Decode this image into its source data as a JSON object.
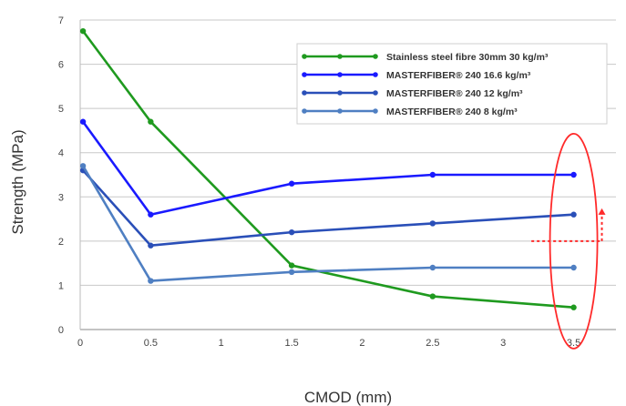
{
  "chart_data": {
    "type": "line",
    "xlabel": "CMOD (mm)",
    "ylabel": "Strength (MPa)",
    "xlim": [
      0,
      3.8
    ],
    "ylim": [
      0,
      7
    ],
    "xticks": [
      "0",
      "0.5",
      "1",
      "1.5",
      "2",
      "2.5",
      "3",
      "3.5"
    ],
    "yticks": [
      "0",
      "1",
      "2",
      "3",
      "4",
      "5",
      "6",
      "7"
    ],
    "grid": "horizontal",
    "legend_position": "top-right",
    "series": [
      {
        "name": "Stainless steel fibre 30mm 30 kg/m³",
        "color": "#1f9a1f",
        "x": [
          0.02,
          0.5,
          1.5,
          2.5,
          3.5
        ],
        "values": [
          6.75,
          4.7,
          1.45,
          0.75,
          0.5
        ]
      },
      {
        "name": "MASTERFIBER® 240 16.6 kg/m³",
        "color": "#1a1aff",
        "x": [
          0.02,
          0.5,
          1.5,
          2.5,
          3.5
        ],
        "values": [
          4.7,
          2.6,
          3.3,
          3.5,
          3.5
        ]
      },
      {
        "name": "MASTERFIBER® 240 12 kg/m³",
        "color": "#2a4fb8",
        "x": [
          0.02,
          0.5,
          1.5,
          2.5,
          3.5
        ],
        "values": [
          3.6,
          1.9,
          2.2,
          2.4,
          2.6
        ]
      },
      {
        "name": "MASTERFIBER® 240 8 kg/m³",
        "color": "#4f7fc2",
        "x": [
          0.02,
          0.5,
          1.5,
          2.5,
          3.5
        ],
        "values": [
          3.7,
          1.1,
          1.3,
          1.4,
          1.4
        ]
      }
    ],
    "annotation": {
      "shape": "ellipse",
      "color": "#ff2a2a",
      "center_x": 3.5,
      "center_y": 2.0,
      "arrow": "dotted-right-then-up"
    }
  }
}
